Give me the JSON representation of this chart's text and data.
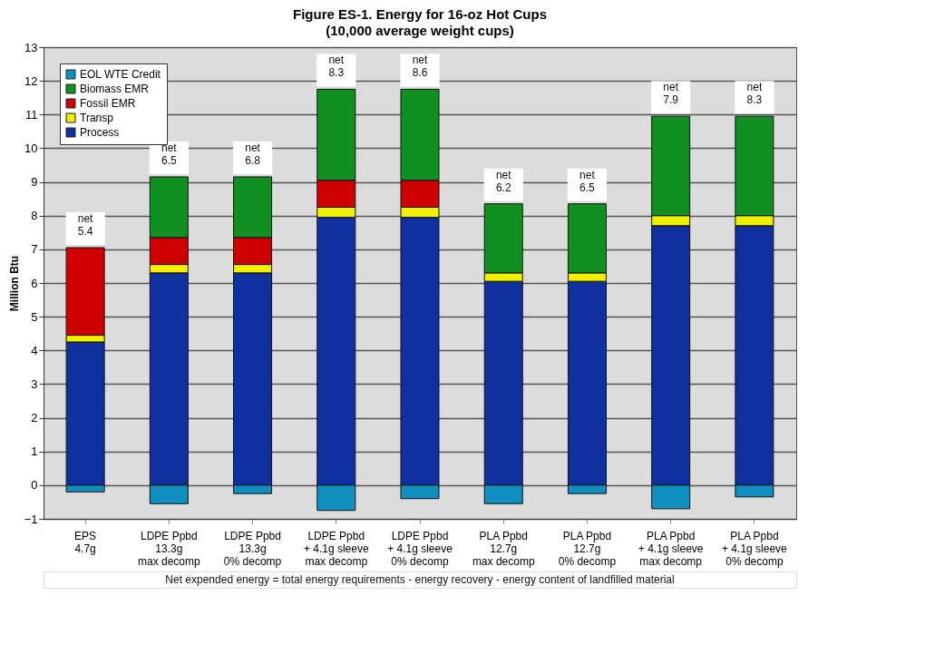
{
  "chart_data": {
    "type": "bar",
    "title": "Figure ES-1. Energy for 16-oz Hot Cups",
    "subtitle": "(10,000 average weight cups)",
    "ylabel": "Million Btu",
    "categories": [
      "EPS\n4.7g",
      "LDPE Ppbd\n13.3g\nmax decomp",
      "LDPE Ppbd\n13.3g\n0% decomp",
      "LDPE Ppbd\n+ 4.1g sleeve\nmax decomp",
      "LDPE Ppbd\n+ 4.1g sleeve\n0% decomp",
      "PLA Ppbd\n12.7g\nmax decomp",
      "PLA Ppbd\n12.7g\n0% decomp",
      "PLA Ppbd\n+ 4.1g sleeve\nmax decomp",
      "PLA Ppbd\n+ 4.1g sleeve\n0% decomp"
    ],
    "stacked": true,
    "series": [
      {
        "name": "Process",
        "color": "#1030a0",
        "values": [
          4.25,
          6.3,
          6.3,
          7.95,
          7.95,
          6.05,
          6.05,
          7.7,
          7.7
        ]
      },
      {
        "name": "Transp",
        "color": "#f0f000",
        "values": [
          0.2,
          0.25,
          0.25,
          0.3,
          0.3,
          0.25,
          0.25,
          0.3,
          0.3
        ]
      },
      {
        "name": "Fossil EMR",
        "color": "#d00000",
        "values": [
          2.6,
          0.8,
          0.8,
          0.8,
          0.8,
          null,
          null,
          null,
          null
        ]
      },
      {
        "name": "Biomass EMR",
        "color": "#109020",
        "values": [
          null,
          1.8,
          1.8,
          2.7,
          2.7,
          2.05,
          2.05,
          2.95,
          2.95
        ]
      },
      {
        "name": "EOL WTE Credit",
        "color": "#1090c0",
        "values": [
          -0.2,
          -0.55,
          -0.25,
          -0.75,
          -0.4,
          -0.55,
          -0.25,
          -0.7,
          -0.35
        ]
      }
    ],
    "ylim": [
      -1,
      13
    ],
    "yticks": [
      -1,
      0,
      1,
      2,
      3,
      4,
      5,
      6,
      7,
      8,
      9,
      10,
      11,
      12,
      13
    ],
    "grid": "y",
    "legend": "top left",
    "annotations": [
      {
        "text": "net\n5.4",
        "x": "EPS\n4.7g",
        "y": 7.05
      },
      {
        "text": "net\n6.5",
        "x": "LDPE Ppbd\n13.3g\nmax decomp",
        "y": 9.15
      },
      {
        "text": "net\n6.8",
        "x": "LDPE Ppbd\n13.3g\n0% decomp",
        "y": 9.15
      },
      {
        "text": "net\n8.3",
        "x": "LDPE Ppbd\n+ 4.1g sleeve\nmax decomp",
        "y": 11.75
      },
      {
        "text": "net\n8.6",
        "x": "LDPE Ppbd\n+ 4.1g sleeve\n0% decomp",
        "y": 11.75
      },
      {
        "text": "net\n6.2",
        "x": "PLA Ppbd\n12.7g\nmax decomp",
        "y": 8.35
      },
      {
        "text": "net\n6.5",
        "x": "PLA Ppbd\n12.7g\n0% decomp",
        "y": 8.35
      },
      {
        "text": "net\n7.9",
        "x": "PLA Ppbd\n+ 4.1g sleeve\nmax decomp",
        "y": 10.95
      },
      {
        "text": "net\n8.3",
        "x": "PLA Ppbd\n+ 4.1g sleeve\n0% decomp",
        "y": 10.95
      },
      "Net expended energy = total energy requirements - energy recovery - energy content of landfilled material"
    ]
  }
}
